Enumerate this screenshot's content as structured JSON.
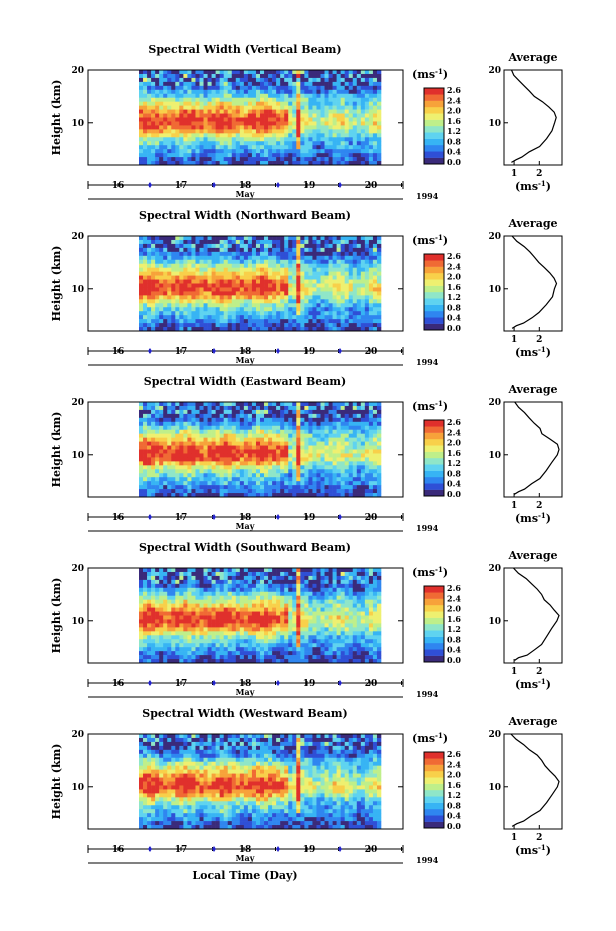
{
  "colors": {
    "colorbar": [
      "#3a2a7a",
      "#2f4fd6",
      "#2f86f0",
      "#37b4f4",
      "#5fd3f0",
      "#8fe6c8",
      "#bfef8a",
      "#eef070",
      "#f8d04a",
      "#f7a23a",
      "#f06a34",
      "#e0302c"
    ]
  },
  "chart_data": [
    {
      "type": "heatmap",
      "title": "Spectral Width (Vertical Beam)",
      "ylabel": "Height (km)",
      "yticks": [
        "20",
        "10"
      ],
      "ylim": [
        2,
        20
      ],
      "xticks": [
        "16",
        "17",
        "18",
        "19",
        "20"
      ],
      "month_label": "May",
      "year_label": "1994",
      "colorbar": {
        "unit_base": "(ms",
        "unit_exp": "-1",
        "unit_close": ")",
        "levels": [
          "2.6",
          "2.4",
          "2.0",
          "1.6",
          "1.2",
          "0.8",
          "0.4",
          "0.0"
        ]
      },
      "average": {
        "title": "Average",
        "xticks": [
          "1",
          "2"
        ],
        "xlabel_base": "(ms",
        "xlabel_exp": "-1",
        "xlabel_close": ")",
        "yticks": [
          "20",
          "10"
        ],
        "profile": [
          [
            0.9,
            2.5
          ],
          [
            1.1,
            3
          ],
          [
            1.3,
            3.5
          ],
          [
            1.6,
            4.5
          ],
          [
            2.0,
            5.5
          ],
          [
            2.3,
            7
          ],
          [
            2.5,
            8.5
          ],
          [
            2.6,
            10
          ],
          [
            2.7,
            11
          ],
          [
            2.6,
            12
          ],
          [
            2.4,
            13
          ],
          [
            2.1,
            14
          ],
          [
            1.8,
            15
          ],
          [
            1.6,
            16
          ],
          [
            1.4,
            17
          ],
          [
            1.2,
            18
          ],
          [
            1.0,
            19
          ],
          [
            0.9,
            20
          ]
        ]
      }
    },
    {
      "type": "heatmap",
      "title": "Spectral Width (Northward Beam)",
      "ylabel": "Height (km)",
      "yticks": [
        "20",
        "10"
      ],
      "ylim": [
        2,
        20
      ],
      "xticks": [
        "16",
        "17",
        "18",
        "19",
        "20"
      ],
      "month_label": "May",
      "year_label": "1994",
      "colorbar": {
        "unit_base": "(ms",
        "unit_exp": "-1",
        "unit_close": ")",
        "levels": [
          "2.6",
          "2.4",
          "2.0",
          "1.6",
          "1.2",
          "0.8",
          "0.4",
          "0.0"
        ]
      },
      "average": {
        "title": "Average",
        "xticks": [
          "1",
          "2"
        ],
        "xlabel_base": "(ms",
        "xlabel_exp": "-1",
        "xlabel_close": ")",
        "yticks": [
          "20",
          "10"
        ],
        "profile": [
          [
            0.9,
            2.5
          ],
          [
            1.1,
            3
          ],
          [
            1.4,
            3.5
          ],
          [
            1.7,
            4.5
          ],
          [
            2.0,
            5.5
          ],
          [
            2.3,
            7
          ],
          [
            2.5,
            8.5
          ],
          [
            2.6,
            10
          ],
          [
            2.7,
            11
          ],
          [
            2.6,
            12
          ],
          [
            2.4,
            13
          ],
          [
            2.2,
            14
          ],
          [
            2.0,
            15
          ],
          [
            1.8,
            16
          ],
          [
            1.6,
            17
          ],
          [
            1.4,
            18
          ],
          [
            1.1,
            19
          ],
          [
            0.9,
            20
          ]
        ]
      }
    },
    {
      "type": "heatmap",
      "title": "Spectral Width (Eastward Beam)",
      "ylabel": "Height (km)",
      "yticks": [
        "20",
        "10"
      ],
      "ylim": [
        2,
        20
      ],
      "xticks": [
        "16",
        "17",
        "18",
        "19",
        "20"
      ],
      "month_label": "May",
      "year_label": "1994",
      "colorbar": {
        "unit_base": "(ms",
        "unit_exp": "-1",
        "unit_close": ")",
        "levels": [
          "2.6",
          "2.4",
          "2.0",
          "1.6",
          "1.2",
          "0.8",
          "0.4",
          "0.0"
        ]
      },
      "average": {
        "title": "Average",
        "xticks": [
          "1",
          "2"
        ],
        "xlabel_base": "(ms",
        "xlabel_exp": "-1",
        "xlabel_close": ")",
        "yticks": [
          "20",
          "10"
        ],
        "profile": [
          [
            1.0,
            2.5
          ],
          [
            1.2,
            3
          ],
          [
            1.4,
            3.5
          ],
          [
            1.7,
            4.5
          ],
          [
            2.0,
            5.5
          ],
          [
            2.3,
            7
          ],
          [
            2.5,
            8.5
          ],
          [
            2.7,
            10
          ],
          [
            2.8,
            11
          ],
          [
            2.7,
            12
          ],
          [
            2.4,
            13
          ],
          [
            2.1,
            14
          ],
          [
            2.0,
            15
          ],
          [
            1.8,
            16
          ],
          [
            1.6,
            17
          ],
          [
            1.4,
            18
          ],
          [
            1.2,
            19
          ],
          [
            1.0,
            20
          ]
        ]
      }
    },
    {
      "type": "heatmap",
      "title": "Spectral Width (Southward Beam)",
      "ylabel": "Height (km)",
      "yticks": [
        "20",
        "10"
      ],
      "ylim": [
        2,
        20
      ],
      "xticks": [
        "16",
        "17",
        "18",
        "19",
        "20"
      ],
      "month_label": "May",
      "year_label": "1994",
      "colorbar": {
        "unit_base": "(ms",
        "unit_exp": "-1",
        "unit_close": ")",
        "levels": [
          "2.6",
          "2.4",
          "2.0",
          "1.6",
          "1.2",
          "0.8",
          "0.4",
          "0.0"
        ]
      },
      "average": {
        "title": "Average",
        "xticks": [
          "1",
          "2"
        ],
        "xlabel_base": "(ms",
        "xlabel_exp": "-1",
        "xlabel_close": ")",
        "yticks": [
          "20",
          "10"
        ],
        "profile": [
          [
            1.0,
            2.5
          ],
          [
            1.2,
            3
          ],
          [
            1.5,
            3.5
          ],
          [
            1.8,
            4.5
          ],
          [
            2.1,
            5.5
          ],
          [
            2.3,
            7
          ],
          [
            2.5,
            8.5
          ],
          [
            2.7,
            10
          ],
          [
            2.8,
            11
          ],
          [
            2.6,
            12
          ],
          [
            2.4,
            13
          ],
          [
            2.2,
            14
          ],
          [
            2.1,
            15
          ],
          [
            1.9,
            16
          ],
          [
            1.7,
            17
          ],
          [
            1.5,
            18
          ],
          [
            1.2,
            19
          ],
          [
            1.0,
            20
          ]
        ]
      }
    },
    {
      "type": "heatmap",
      "title": "Spectral Width (Westward Beam)",
      "ylabel": "Height (km)",
      "yticks": [
        "20",
        "10"
      ],
      "ylim": [
        2,
        20
      ],
      "xticks": [
        "16",
        "17",
        "18",
        "19",
        "20"
      ],
      "month_label": "May",
      "year_label": "1994",
      "colorbar": {
        "unit_base": "(ms",
        "unit_exp": "-1",
        "unit_close": ")",
        "levels": [
          "2.6",
          "2.4",
          "2.0",
          "1.6",
          "1.2",
          "0.8",
          "0.4",
          "0.0"
        ]
      },
      "average": {
        "title": "Average",
        "xticks": [
          "1",
          "2"
        ],
        "xlabel_base": "(ms",
        "xlabel_exp": "-1",
        "xlabel_close": ")",
        "yticks": [
          "20",
          "10"
        ],
        "profile": [
          [
            0.9,
            2.5
          ],
          [
            1.1,
            3
          ],
          [
            1.4,
            3.5
          ],
          [
            1.7,
            4.5
          ],
          [
            2.0,
            5.5
          ],
          [
            2.3,
            7
          ],
          [
            2.5,
            8.5
          ],
          [
            2.7,
            10
          ],
          [
            2.8,
            11
          ],
          [
            2.6,
            12
          ],
          [
            2.4,
            13
          ],
          [
            2.2,
            14
          ],
          [
            2.1,
            15
          ],
          [
            1.9,
            16
          ],
          [
            1.6,
            17
          ],
          [
            1.4,
            18
          ],
          [
            1.1,
            19
          ],
          [
            0.9,
            20
          ]
        ]
      }
    }
  ],
  "footer": {
    "xlabel": "Local Time (Day)"
  }
}
